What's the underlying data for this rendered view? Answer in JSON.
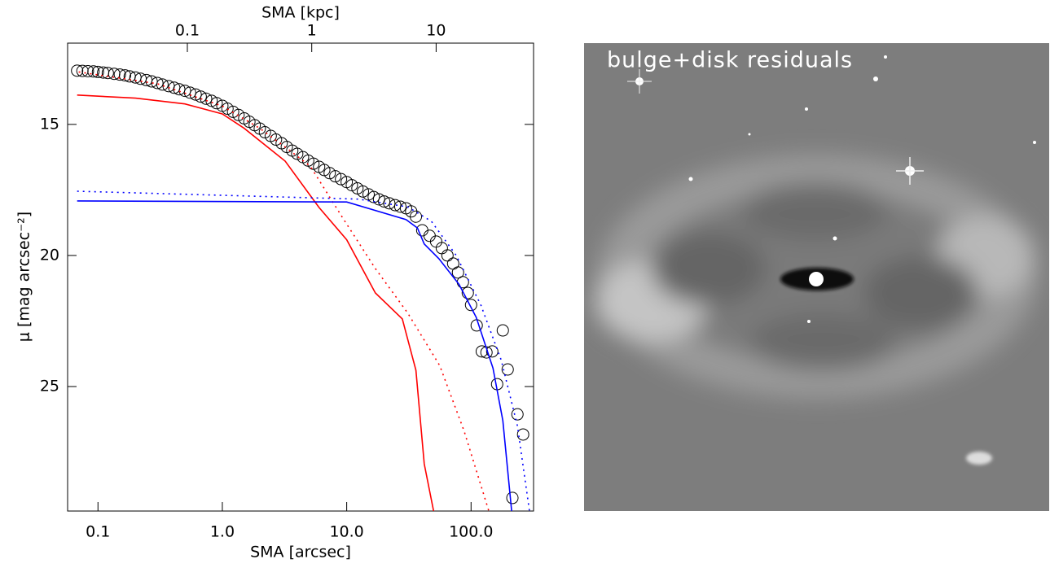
{
  "chart_data": {
    "type": "line",
    "x_label": "SMA [arcsec]",
    "x2_label": "SMA [kpc]",
    "y_label": "μ [mag arcsec⁻²]",
    "xscale": "log",
    "xlim": [
      0.057,
      318
    ],
    "xticks": [
      0.1,
      {
        "value": 1,
        "label": "1.0"
      },
      {
        "value": 10,
        "label": "10.0"
      },
      {
        "value": 100,
        "label": "100.0"
      }
    ],
    "x2lim": [
      0.0109,
      60.7
    ],
    "x2ticks": [
      0.1,
      1,
      10
    ],
    "ylim": [
      29.75,
      11.9
    ],
    "yticks": [
      15,
      20,
      25
    ],
    "series": [
      {
        "style": "circle",
        "color": "#000000",
        "x": [
          0.068,
          0.075,
          0.083,
          0.092,
          0.1,
          0.11,
          0.12,
          0.135,
          0.15,
          0.165,
          0.18,
          0.2,
          0.22,
          0.245,
          0.27,
          0.3,
          0.33,
          0.37,
          0.41,
          0.45,
          0.5,
          0.55,
          0.61,
          0.67,
          0.74,
          0.82,
          0.9,
          1.0,
          1.1,
          1.22,
          1.35,
          1.5,
          1.65,
          1.82,
          2.0,
          2.2,
          2.45,
          2.7,
          3.0,
          3.3,
          3.65,
          4.0,
          4.45,
          4.9,
          5.4,
          6.0,
          6.6,
          7.3,
          8.1,
          9.0,
          10,
          11,
          12.2,
          13.5,
          15,
          16.5,
          18.2,
          20,
          22,
          24.5,
          27,
          30,
          33,
          36,
          40.5,
          46.4,
          52.4,
          58.2,
          64.6,
          71.8,
          78.5,
          86.0,
          94.1,
          100,
          111,
          122,
          133,
          148,
          162,
          180,
          197,
          215,
          236,
          262
        ],
        "values": [
          12.95,
          12.96,
          12.97,
          12.98,
          13.0,
          13.02,
          13.04,
          13.07,
          13.1,
          13.13,
          13.17,
          13.21,
          13.26,
          13.31,
          13.36,
          13.42,
          13.48,
          13.54,
          13.6,
          13.66,
          13.72,
          13.79,
          13.86,
          13.94,
          14.02,
          14.1,
          14.19,
          14.29,
          14.4,
          14.52,
          14.64,
          14.77,
          14.9,
          15.03,
          15.16,
          15.3,
          15.44,
          15.58,
          15.72,
          15.86,
          16.0,
          16.12,
          16.25,
          16.38,
          16.5,
          16.62,
          16.74,
          16.86,
          16.98,
          17.09,
          17.2,
          17.32,
          17.44,
          17.56,
          17.67,
          17.77,
          17.86,
          17.94,
          18.01,
          18.08,
          18.14,
          18.2,
          18.32,
          18.52,
          19.04,
          19.25,
          19.47,
          19.72,
          20.0,
          20.31,
          20.65,
          21.02,
          21.43,
          21.89,
          22.67,
          23.66,
          23.7,
          23.66,
          24.91,
          22.86,
          24.35,
          29.25,
          26.06,
          26.83
        ]
      },
      {
        "style": "solid",
        "color": "#ff0000",
        "x": [
          0.068,
          0.2,
          0.5,
          1.0,
          1.5,
          3.2,
          6,
          10,
          17,
          28,
          36,
          42,
          50
        ],
        "values": [
          13.88,
          14.0,
          14.22,
          14.6,
          15.15,
          16.4,
          18.17,
          19.4,
          21.43,
          22.42,
          24.38,
          27.95,
          29.75
        ]
      },
      {
        "style": "dotted",
        "color": "#ff0000",
        "x": [
          0.07,
          0.3,
          1.0,
          2,
          3.5,
          5.1,
          9.3,
          17,
          31,
          56,
          88,
          139
        ],
        "values": [
          13.0,
          13.45,
          14.3,
          15.15,
          16.0,
          16.6,
          18.57,
          20.5,
          22.2,
          24.2,
          26.7,
          29.75
        ]
      },
      {
        "style": "solid",
        "color": "#0000ff",
        "x": [
          0.068,
          10,
          30,
          37,
          42,
          55,
          80,
          110,
          150,
          180,
          212
        ],
        "values": [
          17.92,
          17.96,
          18.63,
          18.95,
          19.56,
          20.12,
          21.1,
          22.36,
          24.3,
          26.3,
          29.75
        ]
      },
      {
        "style": "dotted",
        "color": "#0000ff",
        "x": [
          0.068,
          12.5,
          31,
          48,
          76,
          120,
          175,
          236,
          295
        ],
        "values": [
          17.55,
          17.85,
          18.15,
          18.7,
          20.0,
          21.9,
          24.0,
          26.5,
          29.75
        ]
      }
    ]
  },
  "image": {
    "label": "bulge+disk residuals"
  }
}
